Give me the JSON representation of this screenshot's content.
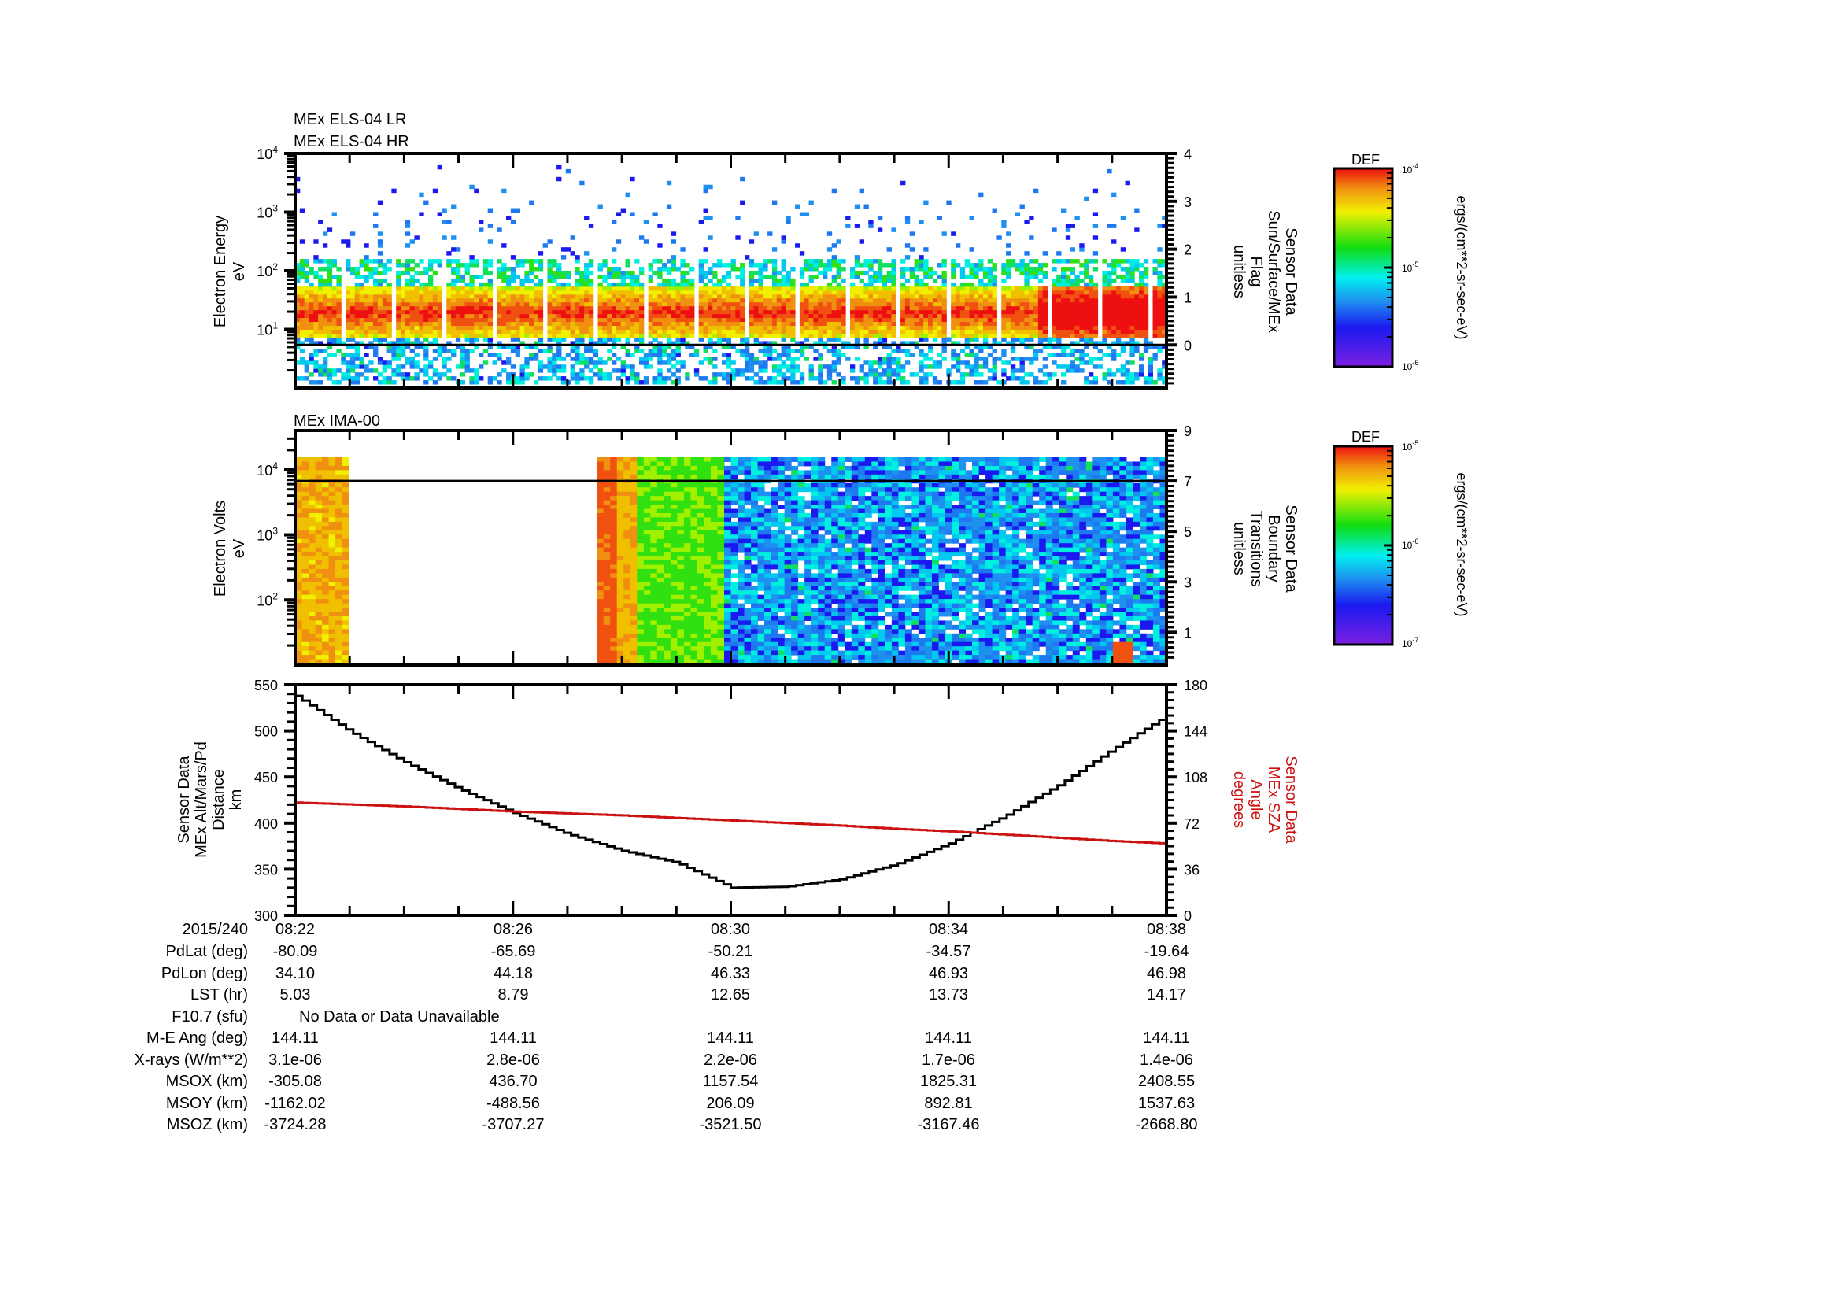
{
  "chart_data": [
    {
      "type": "heatmap",
      "panel": "top",
      "title_lines": [
        "MEx ELS-04 LR",
        "MEx ELS-04 HR"
      ],
      "ylabel": [
        "Electron Energy",
        "eV"
      ],
      "yscale": "log",
      "ylim": [
        1,
        10000
      ],
      "yticks": [
        {
          "v": 10,
          "label": "10",
          "exp": "1"
        },
        {
          "v": 100,
          "label": "10",
          "exp": "2"
        },
        {
          "v": 1000,
          "label": "10",
          "exp": "3"
        },
        {
          "v": 10000,
          "label": "10",
          "exp": "4"
        }
      ],
      "y2label": [
        "Sensor Data",
        "Sun/Surface/MEx",
        "Flag",
        "unitless"
      ],
      "y2lim": [
        -0.9,
        4
      ],
      "y2ticks": [
        "0",
        "1",
        "2",
        "3",
        "4"
      ],
      "overlay_line": {
        "y2_value": 0,
        "color": "#000000"
      },
      "colorbar": {
        "title": "DEF",
        "min_label": "10",
        "min_exp": "-6",
        "mid_label": "10",
        "mid_exp": "-5",
        "max_label": "10",
        "max_exp": "-4",
        "units": "ergs/(cm**2-sr-sec-eV)"
      },
      "description": "Electron spectrogram: intense band ~5-50 eV (orange/red peak near 15-20 eV), sparse blue counts up to ~5 keV, strongest at end of interval (~08:37)"
    },
    {
      "type": "heatmap",
      "panel": "middle",
      "title_lines": [
        "MEx IMA-00"
      ],
      "ylabel": [
        "Electron Volts",
        "eV"
      ],
      "yscale": "log",
      "ylim": [
        10,
        40000
      ],
      "yticks": [
        {
          "v": 100,
          "label": "10",
          "exp": "2"
        },
        {
          "v": 1000,
          "label": "10",
          "exp": "3"
        },
        {
          "v": 10000,
          "label": "10",
          "exp": "4"
        }
      ],
      "y2label": [
        "Sensor Data",
        "Boundary",
        "Transitions",
        "unitless"
      ],
      "y2lim": [
        -0.3,
        9
      ],
      "y2ticks": [
        "1",
        "3",
        "5",
        "7",
        "9"
      ],
      "overlay_line": {
        "y2_value": 7,
        "color": "#000000"
      },
      "colorbar": {
        "title": "DEF",
        "min_label": "10",
        "min_exp": "-7",
        "mid_label": "10",
        "mid_exp": "-6",
        "max_label": "10",
        "max_exp": "-5",
        "units": "ergs/(cm**2-sr-sec-eV)"
      },
      "description": "Ion spectrogram: data 08:22-08:23 (orange/yellow), gap until ~08:25:30, red/orange 08:25:30-08:26, green 08:26-08:27:40, then blue/purple noise to 08:38 with a red spot near 08:37"
    },
    {
      "type": "line",
      "panel": "bottom",
      "xlabel": "",
      "x": [
        "08:22",
        "08:23",
        "08:24",
        "08:25",
        "08:26",
        "08:27",
        "08:28",
        "08:29",
        "08:30",
        "08:31",
        "08:32",
        "08:33",
        "08:34",
        "08:35",
        "08:36",
        "08:37",
        "08:38"
      ],
      "ylabel": [
        "Sensor Data",
        "MEx Alt/Mars/Pd",
        "Distance",
        "km"
      ],
      "ylim": [
        300,
        550
      ],
      "yticks": [
        "300",
        "350",
        "400",
        "450",
        "500",
        "550"
      ],
      "y2label": [
        "Sensor Data",
        "MEx SZA",
        "Angle",
        "degrees"
      ],
      "y2lim": [
        0,
        180
      ],
      "y2ticks": [
        "0",
        "36",
        "72",
        "108",
        "144",
        "180"
      ],
      "series": [
        {
          "name": "MEx Alt/Mars/Pd Distance (km)",
          "axis": "left",
          "color": "#000000",
          "values": [
            538,
            499,
            466,
            437,
            411,
            388,
            370,
            357,
            330,
            331,
            339,
            355,
            378,
            407,
            441,
            480,
            517
          ]
        },
        {
          "name": "MEx SZA Angle (degrees)",
          "axis": "right",
          "color": "#cc1111",
          "values": [
            88,
            86.5,
            85,
            83,
            81,
            79.5,
            78,
            76,
            74,
            72,
            70,
            67.5,
            65.5,
            63,
            60.5,
            58,
            56
          ]
        }
      ]
    }
  ],
  "time_axis": {
    "date": "2015/240",
    "ticks": [
      "08:22",
      "08:26",
      "08:30",
      "08:34",
      "08:38"
    ]
  },
  "ephemeris": {
    "rows": [
      {
        "label": "PdLat (deg)",
        "values": [
          "-80.09",
          "-65.69",
          "-50.21",
          "-34.57",
          "-19.64"
        ]
      },
      {
        "label": "PdLon (deg)",
        "values": [
          "34.10",
          "44.18",
          "46.33",
          "46.93",
          "46.98"
        ]
      },
      {
        "label": "LST (hr)",
        "values": [
          "5.03",
          "8.79",
          "12.65",
          "13.73",
          "14.17"
        ]
      },
      {
        "label": "F10.7 (sfu)",
        "span": "No Data or Data Unavailable"
      },
      {
        "label": "M-E Ang (deg)",
        "values": [
          "144.11",
          "144.11",
          "144.11",
          "144.11",
          "144.11"
        ]
      },
      {
        "label": "X-rays (W/m**2)",
        "values": [
          "3.1e-06",
          "2.8e-06",
          "2.2e-06",
          "1.7e-06",
          "1.4e-06"
        ]
      },
      {
        "label": "MSOX (km)",
        "values": [
          "-305.08",
          "436.70",
          "1157.54",
          "1825.31",
          "2408.55"
        ]
      },
      {
        "label": "MSOY (km)",
        "values": [
          "-1162.02",
          "-488.56",
          "206.09",
          "892.81",
          "1537.63"
        ]
      },
      {
        "label": "MSOZ (km)",
        "values": [
          "-3724.28",
          "-3707.27",
          "-3521.50",
          "-3167.46",
          "-2668.80"
        ]
      }
    ]
  }
}
